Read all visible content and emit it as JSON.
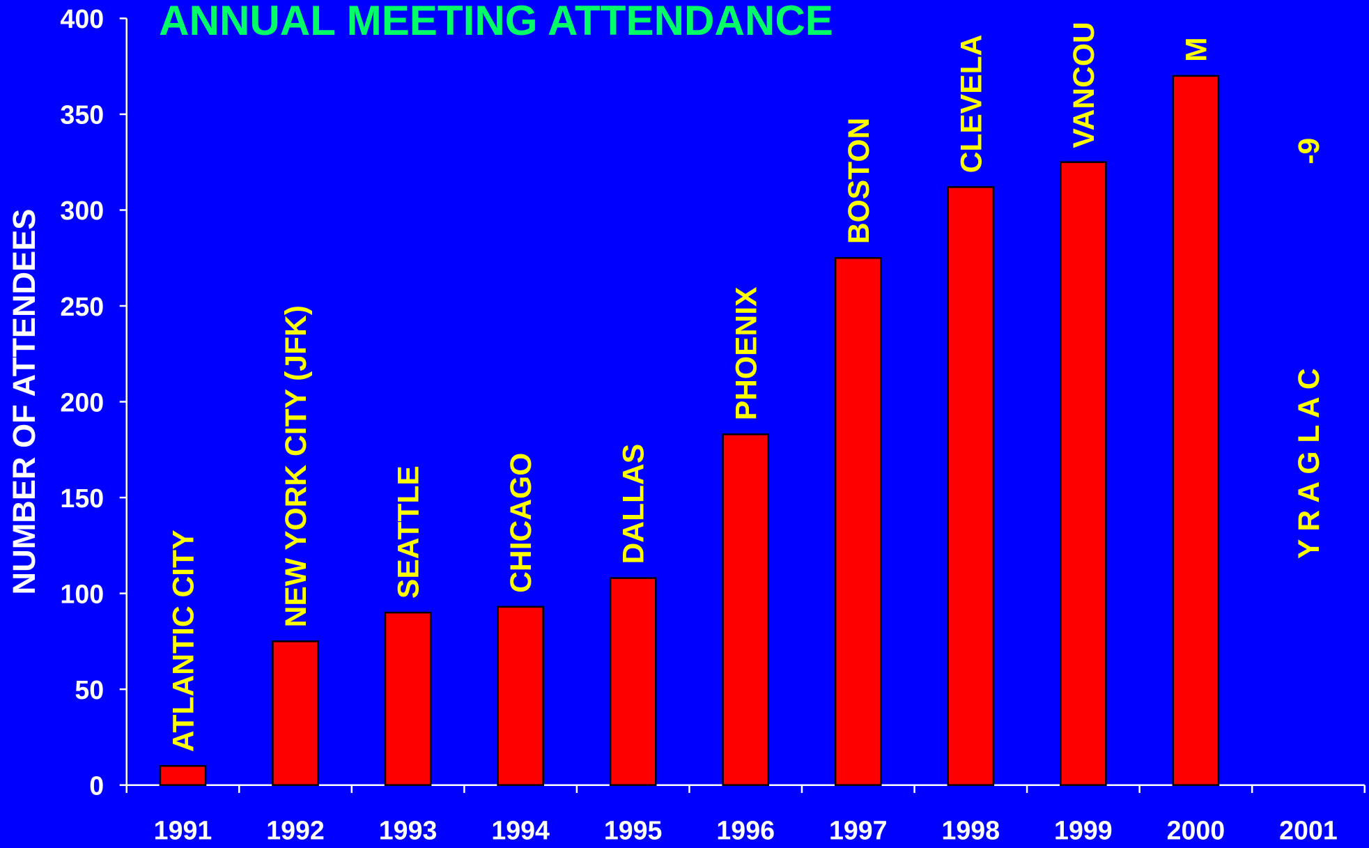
{
  "chart_data": {
    "type": "bar",
    "title": "ANNUAL MEETING ATTENDANCE",
    "y_label": "NUMBER OF ATTENDEES",
    "categories": [
      "1991",
      "1992",
      "1993",
      "1994",
      "1995",
      "1996",
      "1997",
      "1998",
      "1999",
      "2000",
      "2001"
    ],
    "values": [
      10,
      75,
      90,
      93,
      108,
      183,
      275,
      312,
      325,
      370,
      null
    ],
    "labels": [
      "ATLANTIC CITY",
      "NEW YORK CITY (JFK)",
      "SEATTLE",
      "CHICAGO",
      "DALLAS",
      "PHOENIX",
      "BOSTON",
      "CLEVELA",
      "VANCOU",
      "M",
      "Y R A G L A C"
    ],
    "annotation": "-9",
    "color": "#ff0000",
    "ylim": [
      0,
      400
    ],
    "yticks": [
      0,
      50,
      100,
      150,
      200,
      250,
      300,
      350,
      400
    ],
    "grid": false
  }
}
